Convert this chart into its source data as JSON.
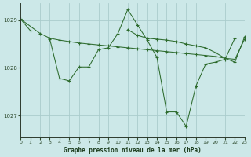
{
  "background_color": "#cce8e8",
  "grid_color": "#aacccc",
  "line_color": "#2d6b2d",
  "xlabel": "Graphe pression niveau de la mer (hPa)",
  "xlim": [
    0,
    23
  ],
  "ylim": [
    1026.55,
    1029.35
  ],
  "yticks": [
    1027,
    1028,
    1029
  ],
  "xtick_labels": [
    "0",
    "1",
    "2",
    "3",
    "4",
    "5",
    "6",
    "7",
    "8",
    "9",
    "10",
    "11",
    "12",
    "13",
    "14",
    "15",
    "16",
    "17",
    "18",
    "19",
    "20",
    "21",
    "22",
    "23"
  ],
  "xticks": [
    0,
    1,
    2,
    3,
    4,
    5,
    6,
    7,
    8,
    9,
    10,
    11,
    12,
    13,
    14,
    15,
    16,
    17,
    18,
    19,
    20,
    21,
    22,
    23
  ],
  "series": [
    {
      "x": [
        0,
        1
      ],
      "y": [
        1029.02,
        1028.78
      ]
    },
    {
      "x": [
        0,
        2,
        3,
        4,
        5,
        6,
        7,
        8,
        9,
        10,
        11,
        12,
        13,
        14,
        15,
        16,
        17,
        18,
        19,
        20,
        21,
        22,
        23
      ],
      "y": [
        1029.02,
        1028.72,
        1028.62,
        1028.58,
        1028.55,
        1028.52,
        1028.5,
        1028.48,
        1028.46,
        1028.44,
        1028.42,
        1028.4,
        1028.38,
        1028.36,
        1028.34,
        1028.32,
        1028.3,
        1028.28,
        1028.26,
        1028.24,
        1028.2,
        1028.18,
        1028.6
      ]
    },
    {
      "x": [
        3,
        4,
        5,
        6,
        7,
        8,
        9,
        10,
        11,
        12,
        13,
        14,
        15,
        16,
        17,
        18,
        19,
        20,
        21,
        22
      ],
      "y": [
        1028.6,
        1027.78,
        1027.73,
        1028.02,
        1028.02,
        1028.38,
        1028.42,
        1028.72,
        1029.22,
        1028.9,
        1028.58,
        1028.22,
        1027.08,
        1027.08,
        1026.78,
        1027.62,
        1028.08,
        1028.12,
        1028.18,
        1028.62
      ]
    },
    {
      "x": [
        11,
        12,
        13,
        14,
        15,
        16,
        17,
        18,
        19,
        20,
        21,
        22,
        23
      ],
      "y": [
        1028.8,
        1028.68,
        1028.62,
        1028.6,
        1028.58,
        1028.55,
        1028.5,
        1028.46,
        1028.42,
        1028.32,
        1028.2,
        1028.12,
        1028.65
      ]
    }
  ]
}
